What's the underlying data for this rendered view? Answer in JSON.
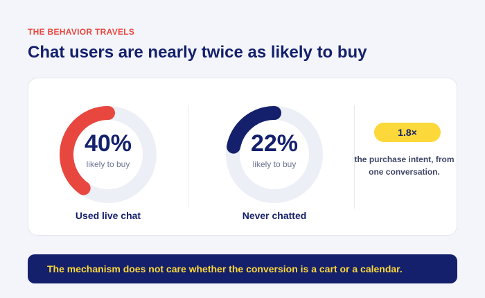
{
  "eyebrow": "THE BEHAVIOR TRAVELS",
  "headline": "Chat users are nearly twice as likely to buy",
  "chart_data": {
    "type": "pie",
    "variant": "donut-gauges",
    "metrics": [
      {
        "name": "Used live chat",
        "value": 40,
        "value_label": "40%",
        "sublabel": "likely to buy",
        "color": "#e8473f"
      },
      {
        "name": "Never chatted",
        "value": 22,
        "value_label": "22%",
        "sublabel": "likely to buy",
        "color": "#14206b"
      }
    ],
    "track_color": "#eceff6"
  },
  "callout": {
    "badge": "1.8×",
    "note": "the purchase intent, from one conversation."
  },
  "banner": "The mechanism does not care whether the conversion is a cart or a calendar."
}
